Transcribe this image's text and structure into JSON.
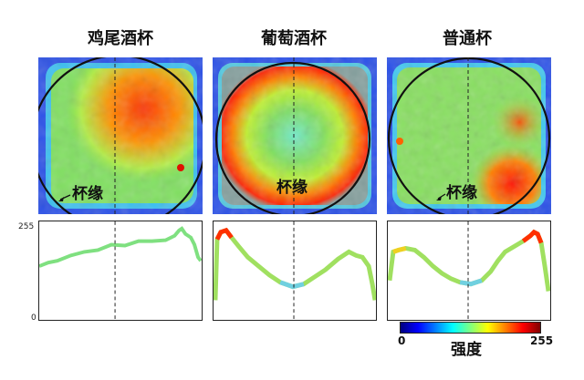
{
  "panels": [
    {
      "title": "鸡尾酒杯",
      "rim_label": "杯缘"
    },
    {
      "title": "葡萄酒杯",
      "rim_label": "杯缘"
    },
    {
      "title": "普通杯",
      "rim_label": "杯缘"
    }
  ],
  "y_axis": {
    "max_label": "255",
    "min_label": "0"
  },
  "colorbar": {
    "min_label": "0",
    "max_label": "255",
    "label": "强度"
  },
  "colors": {
    "low": "#0000ff",
    "mid": "#00ff7f",
    "high": "#ff0000"
  }
}
